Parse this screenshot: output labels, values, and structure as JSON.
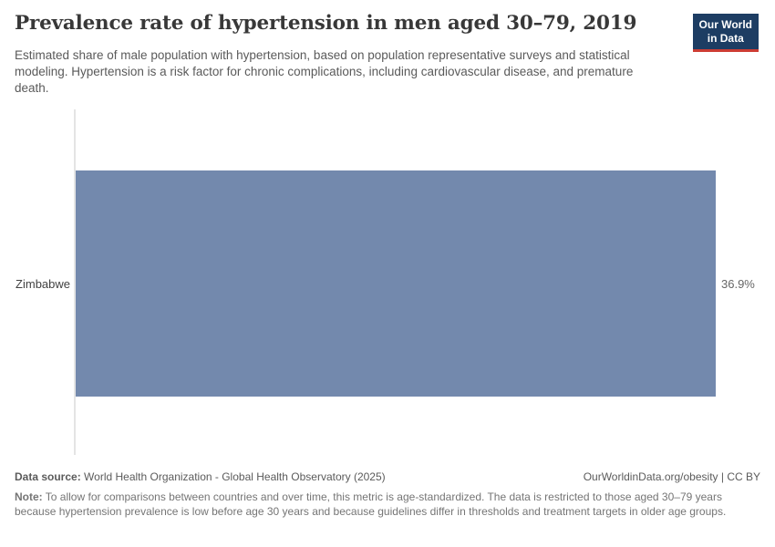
{
  "header": {
    "title": "Prevalence rate of hypertension in men aged 30–79, 2019",
    "subtitle": "Estimated share of male population with hypertension, based on population representative surveys and statistical modeling. Hypertension is a risk factor for chronic complications, including cardiovascular disease, and premature death.",
    "logo": {
      "line1": "Our World",
      "line2": "in Data",
      "bg_color": "#1d3d63",
      "accent_color": "#cd3d34"
    }
  },
  "chart_data": {
    "type": "bar",
    "orientation": "horizontal",
    "title": "Prevalence rate of hypertension in men aged 30–79, 2019",
    "categories": [
      "Zimbabwe"
    ],
    "values": [
      36.9
    ],
    "value_labels": [
      "36.9%"
    ],
    "xlabel": "",
    "ylabel": "",
    "xlim": [
      0,
      36.9
    ],
    "grid": false,
    "legend": false,
    "bar_color": "#7389ad",
    "axis_line_color": "#e4e4e4"
  },
  "footer": {
    "data_source_label": "Data source:",
    "data_source_value": "World Health Organization - Global Health Observatory (2025)",
    "link_text": "OurWorldinData.org/obesity | CC BY",
    "note_label": "Note:",
    "note_text": "To allow for comparisons between countries and over time, this metric is age-standardized. The data is restricted to those aged 30–79 years because hypertension prevalence is low before age 30 years and because guidelines differ in thresholds and treatment targets in older age groups."
  }
}
